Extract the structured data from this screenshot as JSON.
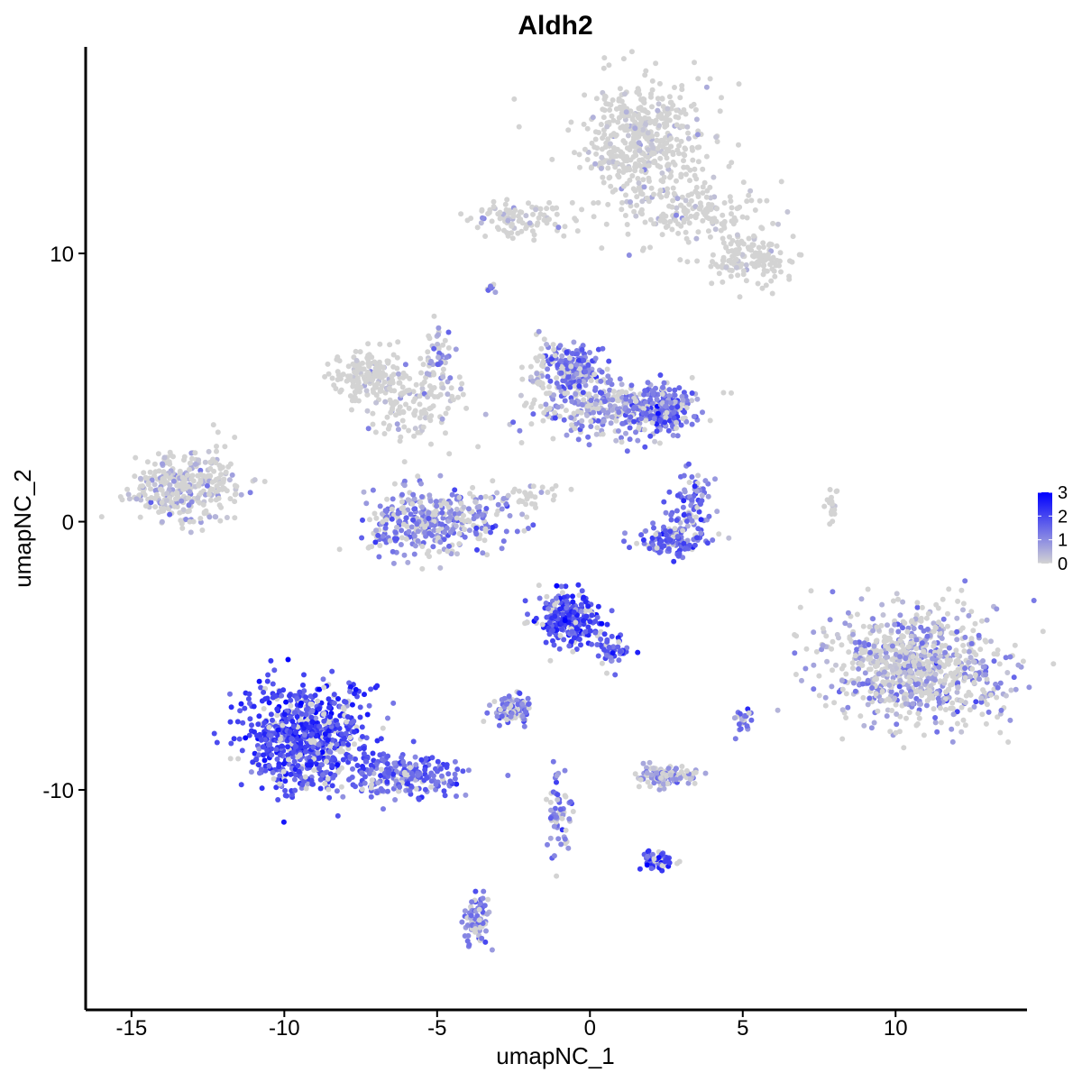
{
  "chart_data": {
    "type": "scatter",
    "title": "Aldh2",
    "xlabel": "umapNC_1",
    "ylabel": "umapNC_2",
    "xlim": [
      -16.5,
      14.3
    ],
    "ylim": [
      -18.2,
      17.7
    ],
    "x_ticks": [
      -15,
      -10,
      -5,
      0,
      5,
      10
    ],
    "y_ticks": [
      -10,
      0,
      10
    ],
    "x_tick_labels": [
      "-15",
      "-10",
      "-5",
      "0",
      "5",
      "10"
    ],
    "y_tick_labels": [
      "-10",
      "0",
      "10"
    ],
    "color_scale": {
      "low": "#d3d3d3",
      "high": "#0000ff",
      "min": 0,
      "max": 3,
      "breaks": [
        3,
        2,
        1,
        0
      ],
      "break_labels": [
        "3",
        "2",
        "1",
        "0"
      ]
    },
    "legend_position": "right",
    "clusters": [
      {
        "x": 1.8,
        "y": 14.2,
        "sx": 1.2,
        "sy": 1.3,
        "n": 500,
        "expr": 0.15
      },
      {
        "x": 3.5,
        "y": 11.5,
        "sx": 1.3,
        "sy": 0.7,
        "n": 160,
        "expr": 0.1
      },
      {
        "x": 5.2,
        "y": 9.8,
        "sx": 0.9,
        "sy": 0.6,
        "n": 140,
        "expr": 0.15
      },
      {
        "x": -2.2,
        "y": 11.3,
        "sx": 1.0,
        "sy": 0.4,
        "n": 100,
        "expr": 0.4
      },
      {
        "x": -7.2,
        "y": 5.5,
        "sx": 0.7,
        "sy": 0.5,
        "n": 150,
        "expr": 0.1
      },
      {
        "x": -5.8,
        "y": 4.5,
        "sx": 1.0,
        "sy": 0.9,
        "n": 150,
        "expr": 0.25
      },
      {
        "x": -5.0,
        "y": 0.0,
        "sx": 1.4,
        "sy": 0.7,
        "n": 380,
        "expr": 1.1
      },
      {
        "x": -13.4,
        "y": 1.2,
        "sx": 1.0,
        "sy": 0.7,
        "n": 300,
        "expr": 0.5
      },
      {
        "x": -0.6,
        "y": 5.6,
        "sx": 0.5,
        "sy": 0.5,
        "n": 200,
        "expr": 1.3
      },
      {
        "x": 0.8,
        "y": 4.2,
        "sx": 1.5,
        "sy": 0.6,
        "n": 320,
        "expr": 1.0
      },
      {
        "x": 2.3,
        "y": 4.1,
        "sx": 0.6,
        "sy": 0.5,
        "n": 180,
        "expr": 1.4
      },
      {
        "x": 3.3,
        "y": 0.5,
        "sx": 0.5,
        "sy": 0.8,
        "n": 90,
        "expr": 1.3
      },
      {
        "x": 2.6,
        "y": -0.7,
        "sx": 0.7,
        "sy": 0.3,
        "n": 110,
        "expr": 1.5
      },
      {
        "x": -0.7,
        "y": -3.6,
        "sx": 0.6,
        "sy": 0.6,
        "n": 260,
        "expr": 2.0
      },
      {
        "x": 0.8,
        "y": -4.8,
        "sx": 0.4,
        "sy": 0.4,
        "n": 50,
        "expr": 1.8
      },
      {
        "x": -9.3,
        "y": -8.0,
        "sx": 1.2,
        "sy": 1.2,
        "n": 750,
        "expr": 2.0
      },
      {
        "x": -6.2,
        "y": -9.4,
        "sx": 1.3,
        "sy": 0.5,
        "n": 220,
        "expr": 1.6
      },
      {
        "x": 10.6,
        "y": -5.3,
        "sx": 1.6,
        "sy": 1.3,
        "n": 850,
        "expr": 0.8
      },
      {
        "x": -2.5,
        "y": -7.0,
        "sx": 0.4,
        "sy": 0.3,
        "n": 90,
        "expr": 1.2
      },
      {
        "x": 2.5,
        "y": -9.5,
        "sx": 0.6,
        "sy": 0.2,
        "n": 120,
        "expr": 0.9
      },
      {
        "x": 2.2,
        "y": -12.6,
        "sx": 0.3,
        "sy": 0.2,
        "n": 50,
        "expr": 2.0
      },
      {
        "x": -3.7,
        "y": -14.8,
        "sx": 0.25,
        "sy": 0.6,
        "n": 70,
        "expr": 1.1
      },
      {
        "x": 5.0,
        "y": -7.4,
        "sx": 0.15,
        "sy": 0.3,
        "n": 25,
        "expr": 1.3
      },
      {
        "x": -1.0,
        "y": -10.9,
        "sx": 0.3,
        "sy": 1.1,
        "n": 60,
        "expr": 1.2
      },
      {
        "x": -1.6,
        "y": 5.4,
        "sx": 0.3,
        "sy": 1.0,
        "n": 40,
        "expr": 0.4
      },
      {
        "x": -12.2,
        "y": 1.8,
        "sx": 0.4,
        "sy": 0.8,
        "n": 40,
        "expr": 0.2
      },
      {
        "x": 7.9,
        "y": 0.5,
        "sx": 0.1,
        "sy": 0.5,
        "n": 20,
        "expr": 0.0
      },
      {
        "x": -1.8,
        "y": 0.9,
        "sx": 0.7,
        "sy": 0.3,
        "n": 30,
        "expr": 0.1
      },
      {
        "x": -4.9,
        "y": 6.2,
        "sx": 0.3,
        "sy": 0.7,
        "n": 40,
        "expr": 1.0
      },
      {
        "x": -3.2,
        "y": 8.7,
        "sx": 0.1,
        "sy": 0.1,
        "n": 8,
        "expr": 1.0
      }
    ]
  }
}
